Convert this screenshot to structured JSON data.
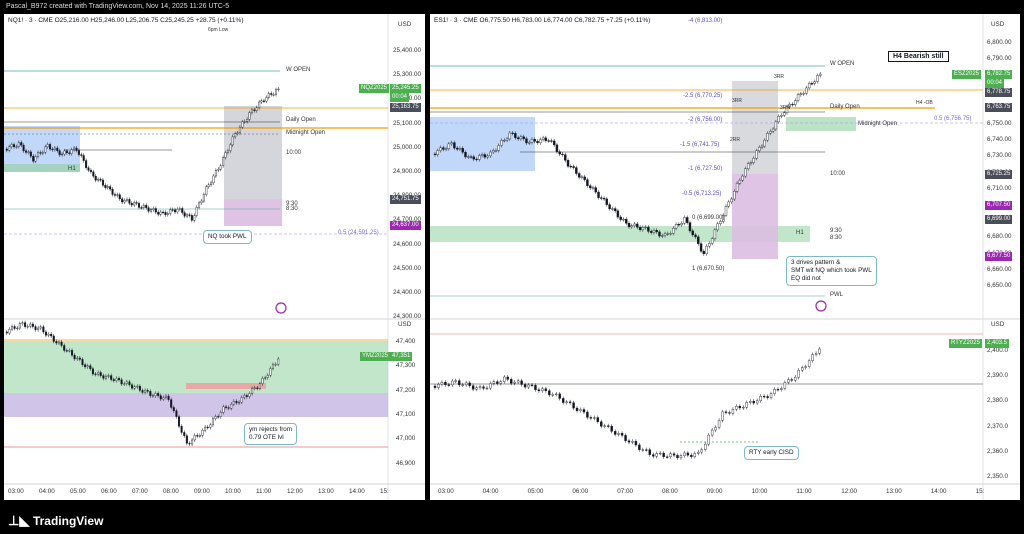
{
  "header": {
    "caption": "Pascal_B972 created with TradingView.com, Nov 14, 2025 11:26 UTC-5"
  },
  "footer": {
    "brand": "TradingView"
  },
  "left": {
    "top": {
      "legend": "NQ1! · 3 · CME  O25,216.00  H25,246.00  L25,206.75  C25,245.25  +28.75 (+0.11%)",
      "sub_note": "6pm Low",
      "currency": "USD",
      "axis": [
        "25,400.00",
        "25,300.00",
        "25,200.00",
        "25,100.00",
        "25,000.00",
        "24,900.00",
        "24,800.00",
        "24,700.00",
        "24,600.00",
        "24,500.00",
        "24,400.00",
        "24,300.00"
      ],
      "symbol_tag": "NQZ2025",
      "price_tag": "25,245.25",
      "countdown": "00:04",
      "tags": [
        "25,163.75",
        "24,751.75",
        "24,637.00"
      ],
      "labels": {
        "w_open": "W OPEN",
        "daily_open": "Daily Open",
        "midnight_open": "Midnight Open",
        "ten": "10:00",
        "nine30": "9:30",
        "eight30": "8:30",
        "h1": "H1",
        "fib_05": "0.5 (24,591.25)"
      },
      "callout": "NQ took PWL"
    },
    "bottom": {
      "currency": "USD",
      "axis": [
        "47,400",
        "47,300",
        "47,200",
        "47,100",
        "47,000",
        "46,900"
      ],
      "symbol_tag": "YMZ2025",
      "price_tag": "47,351",
      "callout": [
        "ym rejects from",
        "0.79 OTE lvl"
      ]
    },
    "time_axis": [
      "03:00",
      "04:00",
      "05:00",
      "06:00",
      "07:00",
      "08:00",
      "09:00",
      "10:00",
      "11:00",
      "12:00",
      "13:00",
      "14:00",
      "15:"
    ]
  },
  "right": {
    "top": {
      "legend": "ES1! · 3 · CME  O6,775.50  H6,783.00  L6,774.00  C6,782.75  +7.25 (+0.11%)",
      "currency": "USD",
      "axis": [
        "6,800.00",
        "6,790.00",
        "6,780.00",
        "6,770.00",
        "6,760.00",
        "6,750.00",
        "6,740.00",
        "6,730.00",
        "6,720.00",
        "6,710.00",
        "6,700.00",
        "6,690.00",
        "6,680.00",
        "6,670.00",
        "6,660.00",
        "6,650.00"
      ],
      "symbol_tag": "ESZ2025",
      "price_tag": "6,782.75",
      "countdown": "00:04",
      "tags": [
        "6,778.75",
        "6,763.75",
        "6,725.25",
        "6,707.50",
        "6,699.00",
        "6,677.50"
      ],
      "title_box": "H4 Bearish still",
      "labels": {
        "w_open": "W OPEN",
        "daily_open": "Daily Open",
        "midnight_open": "Midnight Open",
        "ten": "10:00",
        "nine30": "9:30",
        "eight30": "8:30",
        "h1": "H1",
        "h4_ob": "H4 -OB",
        "pwl": "PWL",
        "rr3a": "3RR",
        "rr3b": "3RR",
        "rr3c": "3RR",
        "rr2": "2RR",
        "fib_05r": "0.5 (6,756.75)"
      },
      "fibs": [
        "-4 (6,813.00)",
        "-2.5 (6,770.25)",
        "-2 (6,756.00)",
        "-1.5 (6,741.75)",
        "-1 (6,727.50)",
        "-0.5 (6,713.25)",
        "0 (6,699.00)",
        "1 (6,670.50)"
      ],
      "callout": [
        "3 drives pattern &",
        "SMT wit NQ which took PWL",
        "EQ did not"
      ]
    },
    "bottom": {
      "currency": "USD",
      "axis": [
        "2,400.0",
        "2,390.0",
        "2,380.0",
        "2,370.0",
        "2,360.0",
        "2,350.0"
      ],
      "symbol_tag": "RTYZ2025",
      "price_tag": "2,403.5",
      "callout": "RTY early CISD"
    },
    "time_axis": [
      "03:00",
      "04:00",
      "05:00",
      "06:00",
      "07:00",
      "08:00",
      "09:00",
      "10:00",
      "11:00",
      "12:00",
      "13:00",
      "14:00",
      "15:"
    ]
  },
  "colors": {
    "up": "#26a69a",
    "down": "#131722",
    "accent_green": "#4caf50",
    "purple": "#9c27b0",
    "orange": "#f59d00",
    "blue_box": "#90b8f8"
  }
}
